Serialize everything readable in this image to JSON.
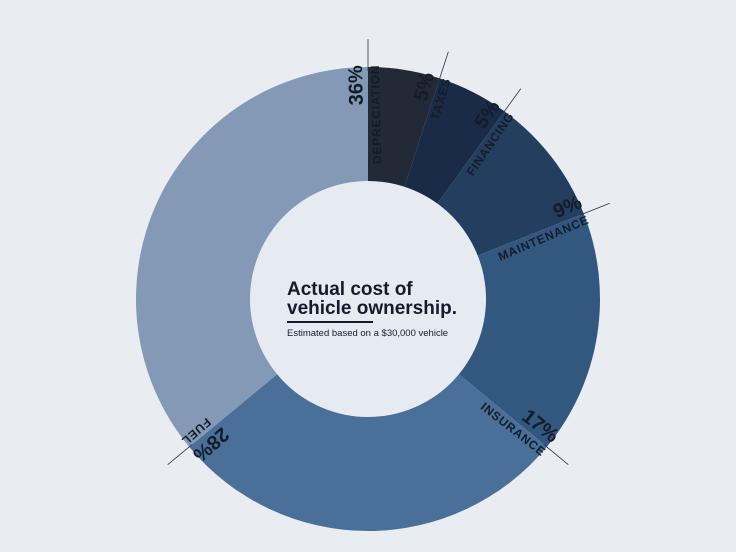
{
  "title_lines": [
    "Actual cost of",
    "vehicle ownership."
  ],
  "subtitle": "Estimated based on a $30,000 vehicle",
  "chart_data": {
    "type": "pie",
    "style": "donut",
    "title": "Actual cost of vehicle ownership.",
    "subtitle": "Estimated based on a $30,000 vehicle",
    "slices": [
      {
        "label": "TAXES",
        "value": 5,
        "pct_text": "5%",
        "color": "#222a38"
      },
      {
        "label": "FINANCING",
        "value": 5,
        "pct_text": "5%",
        "color": "#1a2b47"
      },
      {
        "label": "MAINTENANCE",
        "value": 9,
        "pct_text": "9%",
        "color": "#233e5e"
      },
      {
        "label": "INSURANCE",
        "value": 17,
        "pct_text": "17%",
        "color": "#33587f"
      },
      {
        "label": "FUEL",
        "value": 28,
        "pct_text": "28%",
        "color": "#4a7099"
      },
      {
        "label": "DEPRECIATION",
        "value": 36,
        "pct_text": "36%",
        "color": "#8399b6"
      }
    ]
  }
}
